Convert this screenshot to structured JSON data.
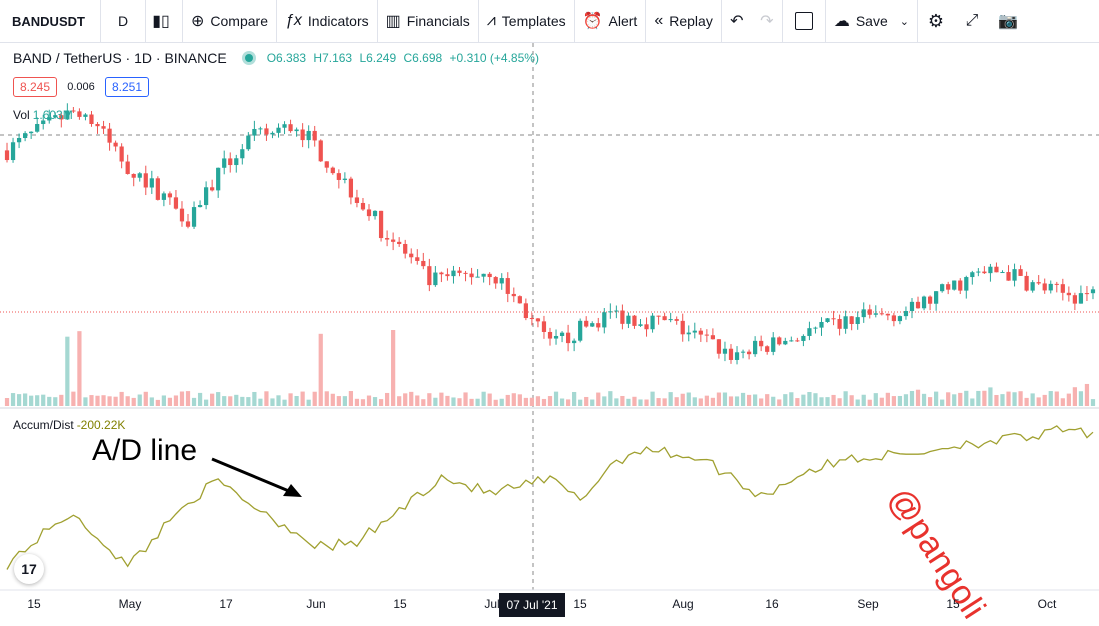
{
  "toolbar": {
    "symbol": "BANDUSDT",
    "interval": "D",
    "compare": "Compare",
    "indicators": "Indicators",
    "financials": "Financials",
    "templates": "Templates",
    "alert": "Alert",
    "replay": "Replay",
    "save": "Save"
  },
  "legend": {
    "title": "BAND / TetherUS · 1D · BINANCE",
    "open": "O6.383",
    "high": "H7.163",
    "low": "L6.249",
    "close": "C6.698",
    "change": "+0.310 (+4.85%)",
    "bid": "8.245",
    "spread": "0.006",
    "ask": "8.251"
  },
  "volume": {
    "label": "Vol",
    "value": "1.603M"
  },
  "indicator": {
    "label": "Accum/Dist",
    "value": "-200.22K"
  },
  "annotation": "A/D line",
  "watermark": "@pangoli",
  "logo": "17",
  "colors": {
    "up": "#26a69a",
    "down": "#ef5350",
    "ad_line": "#a0a030",
    "watermark": "#e8322d"
  },
  "chart_data": {
    "type": "candlestick",
    "xlabels": [
      "15",
      "May",
      "17",
      "Jun",
      "15",
      "Jul",
      "15",
      "Aug",
      "16",
      "Sep",
      "15",
      "Oct"
    ],
    "crosshair_label": "07 Jul '21",
    "current_price_line": 6.698,
    "close_path_usd": [
      [
        0,
        13.5
      ],
      [
        12,
        16.5
      ],
      [
        20,
        12.5
      ],
      [
        30,
        9.8
      ],
      [
        40,
        14.2
      ],
      [
        48,
        15.2
      ],
      [
        55,
        12.0
      ],
      [
        62,
        9.3
      ],
      [
        70,
        7.2
      ],
      [
        80,
        7.6
      ],
      [
        90,
        5.3
      ],
      [
        100,
        6.2
      ],
      [
        110,
        5.9
      ],
      [
        120,
        5.1
      ],
      [
        126,
        5.3
      ],
      [
        132,
        5.6
      ],
      [
        140,
        6.0
      ],
      [
        150,
        6.3
      ],
      [
        160,
        7.4
      ],
      [
        165,
        7.6
      ],
      [
        170,
        7.1
      ],
      [
        175,
        6.8
      ],
      [
        180,
        6.8
      ]
    ],
    "volume_scale": "relative",
    "ad_series": {
      "name": "Accum/Dist",
      "last_value": "-200.22K",
      "path_relative": [
        [
          0,
          0.1
        ],
        [
          10,
          0.45
        ],
        [
          15,
          0.3
        ],
        [
          20,
          0.08
        ],
        [
          30,
          0.55
        ],
        [
          35,
          0.68
        ],
        [
          45,
          0.4
        ],
        [
          52,
          0.22
        ],
        [
          58,
          0.25
        ],
        [
          65,
          0.48
        ],
        [
          72,
          0.72
        ],
        [
          80,
          0.6
        ],
        [
          90,
          0.7
        ],
        [
          95,
          0.55
        ],
        [
          100,
          0.8
        ],
        [
          105,
          0.92
        ],
        [
          115,
          0.85
        ],
        [
          120,
          0.72
        ],
        [
          125,
          0.58
        ],
        [
          132,
          0.75
        ],
        [
          140,
          0.85
        ],
        [
          150,
          0.88
        ],
        [
          158,
          0.95
        ],
        [
          165,
          0.98
        ],
        [
          170,
          1.0
        ],
        [
          175,
          1.05
        ],
        [
          180,
          1.02
        ]
      ]
    }
  }
}
